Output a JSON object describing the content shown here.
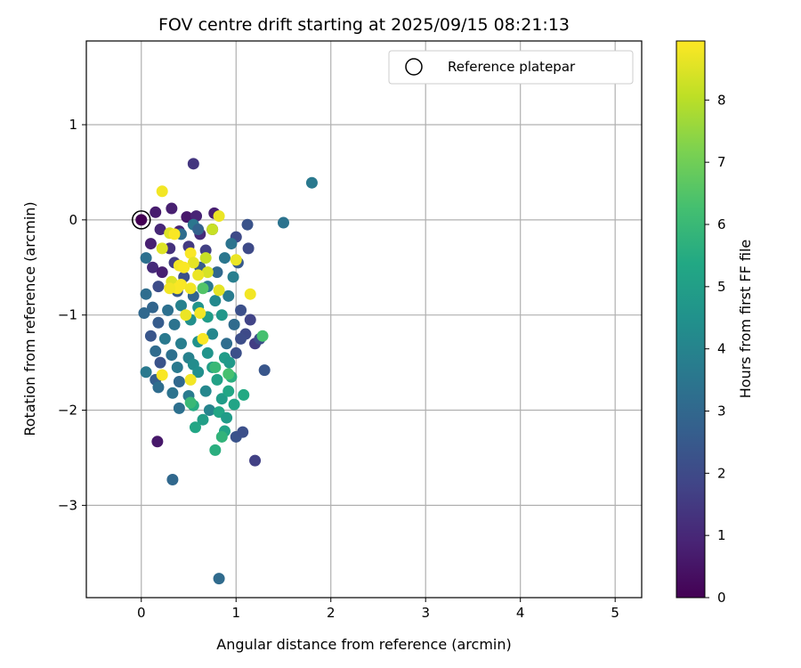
{
  "chart_data": {
    "type": "scatter",
    "title": "FOV centre drift starting at 2025/09/15 08:21:13",
    "xlabel": "Angular distance from reference (arcmin)",
    "ylabel": "Rotation from reference (arcmin)",
    "xlim": [
      -0.58,
      5.28
    ],
    "ylim": [
      -3.97,
      1.88
    ],
    "xticks": [
      0,
      1,
      2,
      3,
      4,
      5
    ],
    "yticks": [
      1,
      0,
      -1,
      -2,
      -3
    ],
    "grid": true,
    "legend": {
      "position": "top-right",
      "entries": [
        "Reference platepar"
      ]
    },
    "reference_point": {
      "x": 0,
      "y": 0
    },
    "colorbar": {
      "label": "Hours from first FF file",
      "range": [
        0,
        8.95
      ],
      "ticks": [
        0,
        1,
        2,
        3,
        4,
        5,
        6,
        7,
        8
      ],
      "colormap": "viridis"
    },
    "points": [
      {
        "x": 0.0,
        "y": 0.0,
        "c": 0.0
      },
      {
        "x": 0.15,
        "y": 0.08,
        "c": 0.7
      },
      {
        "x": 0.32,
        "y": 0.12,
        "c": 0.8
      },
      {
        "x": 0.48,
        "y": 0.03,
        "c": 0.6
      },
      {
        "x": 0.58,
        "y": 0.04,
        "c": 0.9
      },
      {
        "x": 0.77,
        "y": 0.07,
        "c": 0.8
      },
      {
        "x": 0.55,
        "y": 0.59,
        "c": 1.4
      },
      {
        "x": 0.2,
        "y": -0.1,
        "c": 1.0
      },
      {
        "x": 0.4,
        "y": -0.12,
        "c": 0.9
      },
      {
        "x": 0.62,
        "y": -0.15,
        "c": 1.1
      },
      {
        "x": 0.75,
        "y": -0.1,
        "c": 1.2
      },
      {
        "x": 0.1,
        "y": -0.25,
        "c": 0.8
      },
      {
        "x": 0.3,
        "y": -0.3,
        "c": 1.3
      },
      {
        "x": 0.5,
        "y": -0.28,
        "c": 1.5
      },
      {
        "x": 0.68,
        "y": -0.32,
        "c": 1.7
      },
      {
        "x": 1.12,
        "y": -0.05,
        "c": 2.3
      },
      {
        "x": 1.0,
        "y": -0.18,
        "c": 2.0
      },
      {
        "x": 1.13,
        "y": -0.3,
        "c": 2.0
      },
      {
        "x": 1.8,
        "y": 0.39,
        "c": 3.6
      },
      {
        "x": 1.5,
        "y": -0.03,
        "c": 3.4
      },
      {
        "x": 0.95,
        "y": -0.25,
        "c": 3.4
      },
      {
        "x": 0.88,
        "y": -0.4,
        "c": 3.5
      },
      {
        "x": 0.55,
        "y": -0.05,
        "c": 3.5
      },
      {
        "x": 0.6,
        "y": -0.1,
        "c": 2.8
      },
      {
        "x": 0.42,
        "y": -0.15,
        "c": 3.2
      },
      {
        "x": 0.05,
        "y": -0.4,
        "c": 3.3
      },
      {
        "x": 0.12,
        "y": -0.5,
        "c": 1.1
      },
      {
        "x": 0.22,
        "y": -0.55,
        "c": 0.8
      },
      {
        "x": 0.35,
        "y": -0.45,
        "c": 1.6
      },
      {
        "x": 0.45,
        "y": -0.6,
        "c": 2.2
      },
      {
        "x": 0.62,
        "y": -0.5,
        "c": 2.6
      },
      {
        "x": 0.8,
        "y": -0.55,
        "c": 3.0
      },
      {
        "x": 0.97,
        "y": -0.6,
        "c": 3.8
      },
      {
        "x": 1.02,
        "y": -0.45,
        "c": 2.5
      },
      {
        "x": 0.7,
        "y": -0.7,
        "c": 3.6
      },
      {
        "x": 0.55,
        "y": -0.8,
        "c": 2.9
      },
      {
        "x": 0.38,
        "y": -0.75,
        "c": 2.4
      },
      {
        "x": 0.18,
        "y": -0.7,
        "c": 2.1
      },
      {
        "x": 0.05,
        "y": -0.78,
        "c": 3.2
      },
      {
        "x": 0.12,
        "y": -0.92,
        "c": 2.9
      },
      {
        "x": 0.28,
        "y": -0.95,
        "c": 3.3
      },
      {
        "x": 0.42,
        "y": -0.9,
        "c": 3.9
      },
      {
        "x": 0.6,
        "y": -0.92,
        "c": 4.6
      },
      {
        "x": 0.78,
        "y": -0.85,
        "c": 4.2
      },
      {
        "x": 0.92,
        "y": -0.8,
        "c": 3.7
      },
      {
        "x": 1.05,
        "y": -0.95,
        "c": 2.2
      },
      {
        "x": 1.15,
        "y": -1.05,
        "c": 1.8
      },
      {
        "x": 0.03,
        "y": -0.98,
        "c": 3.0
      },
      {
        "x": 0.18,
        "y": -1.08,
        "c": 2.6
      },
      {
        "x": 0.35,
        "y": -1.1,
        "c": 3.4
      },
      {
        "x": 0.52,
        "y": -1.05,
        "c": 4.4
      },
      {
        "x": 0.7,
        "y": -1.02,
        "c": 4.9
      },
      {
        "x": 0.85,
        "y": -1.0,
        "c": 4.7
      },
      {
        "x": 0.98,
        "y": -1.1,
        "c": 3.1
      },
      {
        "x": 1.1,
        "y": -1.2,
        "c": 2.0
      },
      {
        "x": 1.2,
        "y": -1.3,
        "c": 1.6
      },
      {
        "x": 1.25,
        "y": -1.25,
        "c": 2.1
      },
      {
        "x": 0.1,
        "y": -1.22,
        "c": 2.4
      },
      {
        "x": 0.25,
        "y": -1.25,
        "c": 3.6
      },
      {
        "x": 0.42,
        "y": -1.3,
        "c": 3.8
      },
      {
        "x": 0.6,
        "y": -1.28,
        "c": 4.5
      },
      {
        "x": 0.75,
        "y": -1.2,
        "c": 4.1
      },
      {
        "x": 0.9,
        "y": -1.3,
        "c": 3.2
      },
      {
        "x": 1.05,
        "y": -1.25,
        "c": 2.1
      },
      {
        "x": 0.15,
        "y": -1.38,
        "c": 3.1
      },
      {
        "x": 0.32,
        "y": -1.42,
        "c": 3.3
      },
      {
        "x": 0.5,
        "y": -1.45,
        "c": 3.9
      },
      {
        "x": 0.7,
        "y": -1.4,
        "c": 4.6
      },
      {
        "x": 0.88,
        "y": -1.45,
        "c": 4.9
      },
      {
        "x": 1.0,
        "y": -1.4,
        "c": 2.2
      },
      {
        "x": 0.2,
        "y": -1.5,
        "c": 2.3
      },
      {
        "x": 0.38,
        "y": -1.55,
        "c": 3.6
      },
      {
        "x": 0.55,
        "y": -1.52,
        "c": 4.3
      },
      {
        "x": 0.75,
        "y": -1.55,
        "c": 5.0
      },
      {
        "x": 0.93,
        "y": -1.5,
        "c": 4.8
      },
      {
        "x": 1.3,
        "y": -1.58,
        "c": 2.4
      },
      {
        "x": 0.05,
        "y": -1.6,
        "c": 3.6
      },
      {
        "x": 0.15,
        "y": -1.68,
        "c": 2.7
      },
      {
        "x": 0.4,
        "y": -1.7,
        "c": 3.0
      },
      {
        "x": 0.6,
        "y": -1.6,
        "c": 4.4
      },
      {
        "x": 0.8,
        "y": -1.68,
        "c": 5.1
      },
      {
        "x": 0.95,
        "y": -1.65,
        "c": 5.6
      },
      {
        "x": 0.18,
        "y": -1.76,
        "c": 3.2
      },
      {
        "x": 0.33,
        "y": -1.82,
        "c": 3.4
      },
      {
        "x": 0.5,
        "y": -1.85,
        "c": 3.7
      },
      {
        "x": 0.68,
        "y": -1.8,
        "c": 4.1
      },
      {
        "x": 0.85,
        "y": -1.88,
        "c": 4.9
      },
      {
        "x": 0.92,
        "y": -1.8,
        "c": 5.3
      },
      {
        "x": 1.08,
        "y": -1.84,
        "c": 5.4
      },
      {
        "x": 0.4,
        "y": -1.98,
        "c": 3.3
      },
      {
        "x": 0.55,
        "y": -1.95,
        "c": 5.5
      },
      {
        "x": 0.72,
        "y": -2.0,
        "c": 4.0
      },
      {
        "x": 0.82,
        "y": -2.02,
        "c": 5.3
      },
      {
        "x": 0.98,
        "y": -1.94,
        "c": 5.2
      },
      {
        "x": 0.65,
        "y": -2.1,
        "c": 5.0
      },
      {
        "x": 0.9,
        "y": -2.08,
        "c": 4.9
      },
      {
        "x": 1.0,
        "y": -2.28,
        "c": 2.3
      },
      {
        "x": 1.07,
        "y": -2.23,
        "c": 2.2
      },
      {
        "x": 0.88,
        "y": -2.22,
        "c": 5.2
      },
      {
        "x": 0.85,
        "y": -2.28,
        "c": 5.8
      },
      {
        "x": 0.57,
        "y": -2.18,
        "c": 5.3
      },
      {
        "x": 0.78,
        "y": -2.42,
        "c": 5.6
      },
      {
        "x": 1.2,
        "y": -2.53,
        "c": 1.7
      },
      {
        "x": 0.17,
        "y": -2.33,
        "c": 0.6
      },
      {
        "x": 0.33,
        "y": -2.73,
        "c": 3.0
      },
      {
        "x": 0.82,
        "y": -3.77,
        "c": 3.1
      },
      {
        "x": 1.28,
        "y": -1.22,
        "c": 6.3
      },
      {
        "x": 0.92,
        "y": -1.62,
        "c": 6.3
      },
      {
        "x": 0.52,
        "y": -1.92,
        "c": 6.0
      },
      {
        "x": 0.65,
        "y": -0.72,
        "c": 6.5
      },
      {
        "x": 0.78,
        "y": -1.55,
        "c": 6.0
      },
      {
        "x": 0.22,
        "y": 0.3,
        "c": 8.8
      },
      {
        "x": 0.82,
        "y": 0.04,
        "c": 8.7
      },
      {
        "x": 0.3,
        "y": -0.14,
        "c": 8.5
      },
      {
        "x": 0.35,
        "y": -0.15,
        "c": 8.9
      },
      {
        "x": 0.75,
        "y": -0.1,
        "c": 8.2
      },
      {
        "x": 0.22,
        "y": -0.3,
        "c": 8.5
      },
      {
        "x": 0.52,
        "y": -0.35,
        "c": 8.9
      },
      {
        "x": 0.55,
        "y": -0.45,
        "c": 8.6
      },
      {
        "x": 1.0,
        "y": -0.42,
        "c": 8.7
      },
      {
        "x": 0.4,
        "y": -0.48,
        "c": 8.8
      },
      {
        "x": 0.45,
        "y": -0.5,
        "c": 8.9
      },
      {
        "x": 0.7,
        "y": -0.55,
        "c": 8.4
      },
      {
        "x": 0.6,
        "y": -0.58,
        "c": 8.7
      },
      {
        "x": 0.32,
        "y": -0.65,
        "c": 8.5
      },
      {
        "x": 0.42,
        "y": -0.68,
        "c": 8.9
      },
      {
        "x": 0.38,
        "y": -0.72,
        "c": 8.9
      },
      {
        "x": 0.3,
        "y": -0.72,
        "c": 8.8
      },
      {
        "x": 0.52,
        "y": -0.72,
        "c": 8.8
      },
      {
        "x": 0.82,
        "y": -0.74,
        "c": 8.6
      },
      {
        "x": 1.15,
        "y": -0.78,
        "c": 8.8
      },
      {
        "x": 0.47,
        "y": -1.0,
        "c": 8.7
      },
      {
        "x": 0.62,
        "y": -0.98,
        "c": 8.8
      },
      {
        "x": 0.65,
        "y": -1.25,
        "c": 8.9
      },
      {
        "x": 0.22,
        "y": -1.63,
        "c": 8.9
      },
      {
        "x": 0.52,
        "y": -1.68,
        "c": 8.8
      },
      {
        "x": 0.68,
        "y": -0.4,
        "c": 8.2
      }
    ]
  }
}
